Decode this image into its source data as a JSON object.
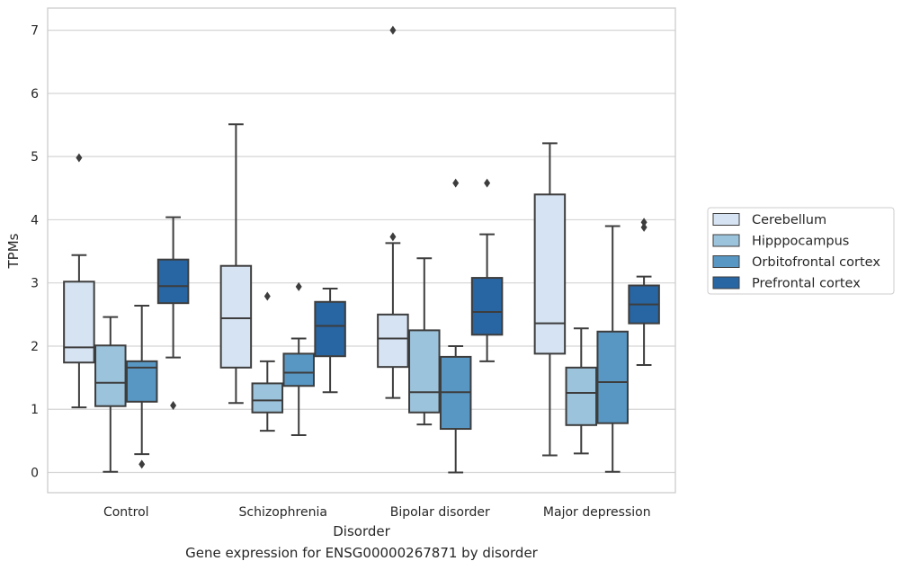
{
  "chart_data": {
    "type": "boxplot",
    "title": "",
    "caption": "Gene expression for ENSG00000267871 by disorder",
    "xlabel": "Disorder",
    "ylabel": "TPMs",
    "ylim": [
      -0.32,
      7.35
    ],
    "yticks": [
      0,
      1,
      2,
      3,
      4,
      5,
      6,
      7
    ],
    "grid": true,
    "legend_position": "right",
    "categories": [
      "Control",
      "Schizophrenia",
      "Bipolar disorder",
      "Major depression"
    ],
    "series": [
      {
        "name": "Cerebellum",
        "color": "#d6e3f2",
        "boxes": [
          {
            "whislo": 1.03,
            "q1": 1.74,
            "med": 1.98,
            "q3": 3.02,
            "whishi": 3.44,
            "fliers": [
              4.98
            ]
          },
          {
            "whislo": 1.1,
            "q1": 1.66,
            "med": 2.44,
            "q3": 3.27,
            "whishi": 5.51,
            "fliers": []
          },
          {
            "whislo": 1.18,
            "q1": 1.67,
            "med": 2.12,
            "q3": 2.5,
            "whishi": 3.63,
            "fliers": [
              3.73,
              7.0
            ]
          },
          {
            "whislo": 0.27,
            "q1": 1.88,
            "med": 2.36,
            "q3": 4.4,
            "whishi": 5.21,
            "fliers": []
          }
        ]
      },
      {
        "name": "Hipppocampus",
        "color": "#9cc3dc",
        "boxes": [
          {
            "whislo": 0.01,
            "q1": 1.05,
            "med": 1.42,
            "q3": 2.01,
            "whishi": 2.46,
            "fliers": []
          },
          {
            "whislo": 0.66,
            "q1": 0.95,
            "med": 1.14,
            "q3": 1.41,
            "whishi": 1.76,
            "fliers": [
              2.79
            ]
          },
          {
            "whislo": 0.76,
            "q1": 0.95,
            "med": 1.27,
            "q3": 2.25,
            "whishi": 3.39,
            "fliers": []
          },
          {
            "whislo": 0.3,
            "q1": 0.75,
            "med": 1.26,
            "q3": 1.66,
            "whishi": 2.28,
            "fliers": []
          }
        ]
      },
      {
        "name": "Orbitofrontal cortex",
        "color": "#5897c4",
        "boxes": [
          {
            "whislo": 0.29,
            "q1": 1.12,
            "med": 1.66,
            "q3": 1.76,
            "whishi": 2.64,
            "fliers": [
              0.13
            ]
          },
          {
            "whislo": 0.59,
            "q1": 1.37,
            "med": 1.58,
            "q3": 1.88,
            "whishi": 2.12,
            "fliers": [
              2.94
            ]
          },
          {
            "whislo": 0.0,
            "q1": 0.69,
            "med": 1.27,
            "q3": 1.83,
            "whishi": 2.0,
            "fliers": [
              4.58
            ]
          },
          {
            "whislo": 0.01,
            "q1": 0.78,
            "med": 1.43,
            "q3": 2.23,
            "whishi": 3.9,
            "fliers": []
          }
        ]
      },
      {
        "name": "Prefrontal cortex",
        "color": "#2765a3",
        "boxes": [
          {
            "whislo": 1.82,
            "q1": 2.68,
            "med": 2.95,
            "q3": 3.37,
            "whishi": 4.04,
            "fliers": [
              1.06
            ]
          },
          {
            "whislo": 1.27,
            "q1": 1.84,
            "med": 2.32,
            "q3": 2.7,
            "whishi": 2.91,
            "fliers": []
          },
          {
            "whislo": 1.76,
            "q1": 2.18,
            "med": 2.54,
            "q3": 3.08,
            "whishi": 3.77,
            "fliers": [
              4.58
            ]
          },
          {
            "whislo": 1.7,
            "q1": 2.36,
            "med": 2.66,
            "q3": 2.96,
            "whishi": 3.1,
            "fliers": [
              3.88,
              3.96
            ]
          }
        ]
      }
    ]
  }
}
